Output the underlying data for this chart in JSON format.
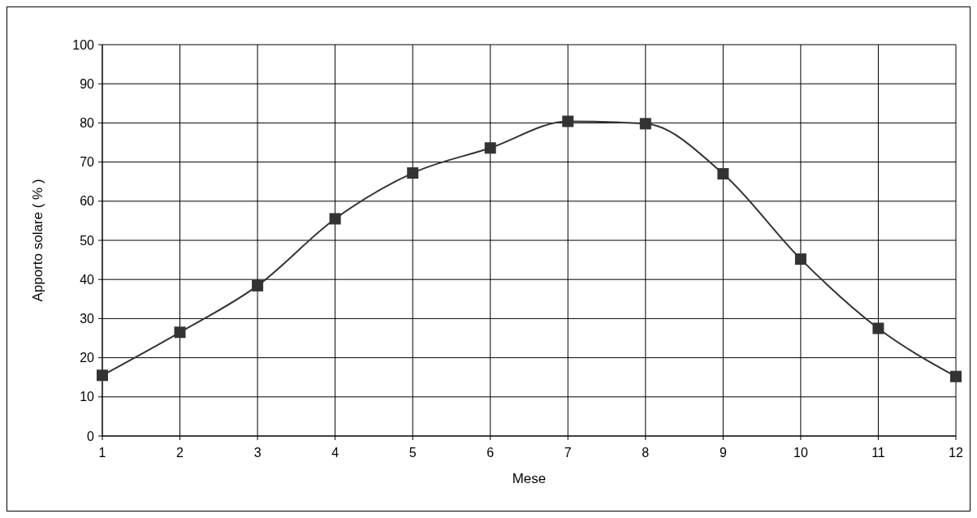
{
  "chart_data": {
    "type": "line",
    "xlabel": "Mese",
    "ylabel": "Apporto solare ( % )",
    "x": [
      1,
      2,
      3,
      4,
      5,
      6,
      7,
      8,
      9,
      10,
      11,
      12
    ],
    "series": [
      {
        "color": "#333333",
        "values": [
          15.5,
          26.5,
          38.4,
          55.5,
          67.2,
          73.6,
          80.4,
          79.8,
          67,
          45.2,
          27.5,
          15.2
        ]
      }
    ],
    "xlim": [
      1,
      12
    ],
    "xticks": [
      1,
      2,
      3,
      4,
      5,
      6,
      7,
      8,
      9,
      10,
      11,
      12
    ],
    "ylim": [
      0,
      100
    ],
    "yticks": [
      0,
      10,
      20,
      30,
      40,
      50,
      60,
      70,
      80,
      90,
      100
    ],
    "grid": true,
    "marker": "square",
    "line_style": "solid"
  }
}
